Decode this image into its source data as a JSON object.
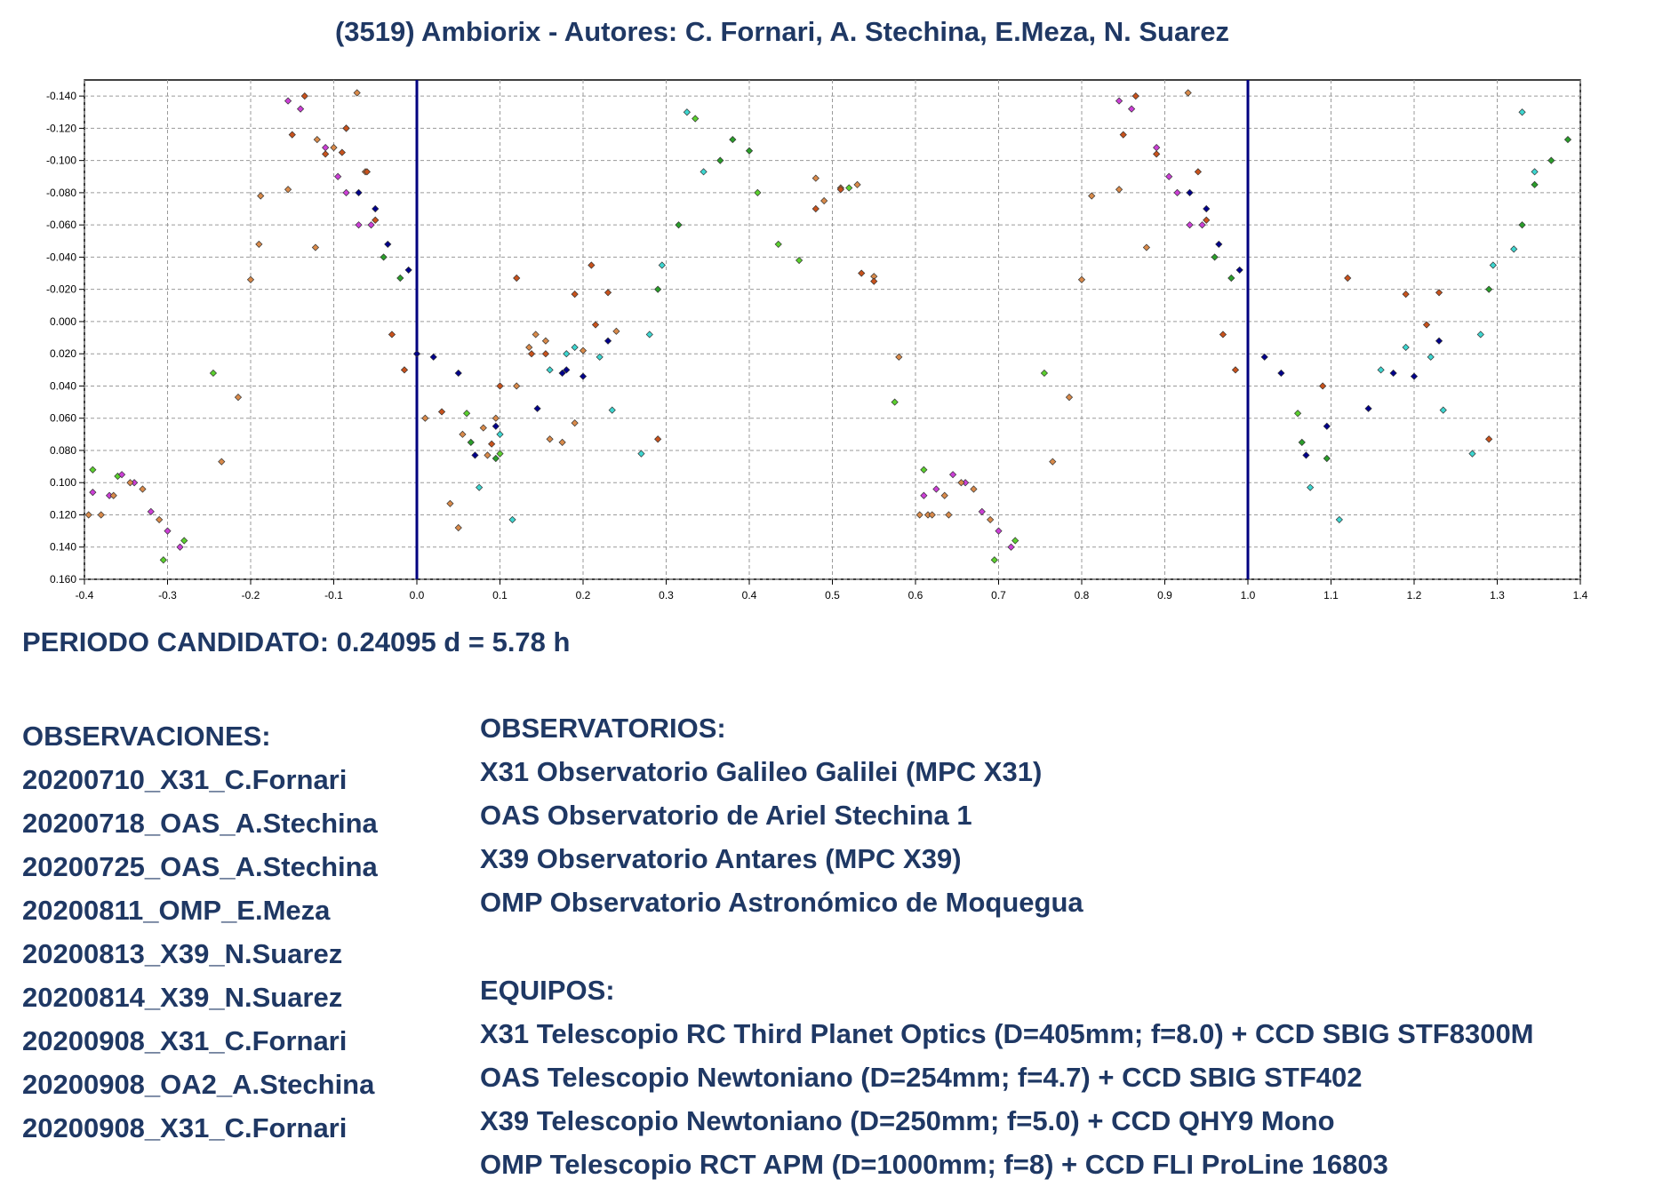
{
  "header": {
    "title": "(3519) Ambiorix - Autores: C. Fornari, A. Stechina, E.Meza, N. Suarez"
  },
  "period": "PERIODO CANDIDATO: 0.24095 d = 5.78 h",
  "observaciones": {
    "heading": "OBSERVACIONES:",
    "items": [
      "20200710_X31_C.Fornari",
      "20200718_OAS_A.Stechina",
      "20200725_OAS_A.Stechina",
      "20200811_OMP_E.Meza",
      "20200813_X39_N.Suarez",
      "20200814_X39_N.Suarez",
      "20200908_X31_C.Fornari",
      "20200908_OA2_A.Stechina",
      "20200908_X31_C.Fornari"
    ]
  },
  "observatorios": {
    "heading": "OBSERVATORIOS:",
    "items": [
      "X31 Observatorio Galileo Galilei (MPC X31)",
      "OAS Observatorio de Ariel Stechina 1",
      "X39 Observatorio Antares (MPC X39)",
      "OMP Observatorio Astronómico de Moquegua"
    ]
  },
  "equipos": {
    "heading": "EQUIPOS:",
    "items": [
      "X31 Telescopio RC Third Planet Optics (D=405mm; f=8.0) + CCD SBIG STF8300M",
      "OAS Telescopio Newtoniano (D=254mm; f=4.7) + CCD SBIG STF402",
      "X39 Telescopio Newtoniano (D=250mm; f=5.0) + CCD QHY9 Mono",
      "OMP Telescopio RCT APM (D=1000mm; f=8) + CCD FLI ProLine 16803"
    ]
  },
  "colors": {
    "text": "#1f3864",
    "phase_markers": "#000080",
    "grid": "#9a9a9a"
  },
  "chart_data": {
    "type": "scatter",
    "title": "(3519) Ambiorix - Autores: C. Fornari, A. Stechina, E.Meza, N. Suarez",
    "xlabel": "",
    "ylabel": "",
    "xlim": [
      -0.4,
      1.4
    ],
    "ylim": [
      0.16,
      -0.15
    ],
    "y_inverted": true,
    "grid": true,
    "legend": "none",
    "vertical_lines": [
      0.0,
      1.0
    ],
    "x_ticks": [
      "-0.4",
      "-0.3",
      "-0.2",
      "-0.1",
      "0.0",
      "0.1",
      "0.2",
      "0.3",
      "0.4",
      "0.5",
      "0.6",
      "0.7",
      "0.8",
      "0.9",
      "1.0",
      "1.1",
      "1.2",
      "1.3",
      "1.4"
    ],
    "y_ticks": [
      "-0.140",
      "-0.120",
      "-0.100",
      "-0.080",
      "-0.060",
      "-0.040",
      "-0.020",
      "0.000",
      "0.020",
      "0.040",
      "0.060",
      "0.080",
      "0.100",
      "0.120",
      "0.140",
      "0.160"
    ],
    "period_shift": 1.0,
    "series": [
      {
        "color": "#d98a4a",
        "points": [
          [
            -0.235,
            0.087
          ],
          [
            -0.215,
            0.047
          ],
          [
            -0.2,
            -0.026
          ],
          [
            -0.19,
            -0.048
          ],
          [
            -0.188,
            -0.078
          ],
          [
            -0.155,
            -0.082
          ],
          [
            -0.12,
            -0.113
          ],
          [
            -0.122,
            -0.046
          ],
          [
            -0.1,
            -0.108
          ],
          [
            -0.085,
            -0.12
          ],
          [
            -0.072,
            -0.142
          ],
          [
            -0.062,
            -0.093
          ],
          [
            0.01,
            0.06
          ],
          [
            0.04,
            0.113
          ],
          [
            0.05,
            0.128
          ],
          [
            0.055,
            0.07
          ],
          [
            0.08,
            0.066
          ],
          [
            0.085,
            0.083
          ],
          [
            0.095,
            0.06
          ],
          [
            0.12,
            0.04
          ],
          [
            0.135,
            0.016
          ],
          [
            0.143,
            0.008
          ],
          [
            0.155,
            0.012
          ],
          [
            0.16,
            0.073
          ],
          [
            0.175,
            0.075
          ],
          [
            0.19,
            0.063
          ],
          [
            0.2,
            0.018
          ],
          [
            0.24,
            0.006
          ],
          [
            0.48,
            -0.089
          ],
          [
            0.49,
            -0.075
          ],
          [
            0.51,
            -0.083
          ],
          [
            0.53,
            -0.085
          ],
          [
            0.55,
            -0.028
          ],
          [
            0.58,
            0.022
          ],
          [
            0.615,
            0.12
          ],
          [
            0.64,
            0.12
          ],
          [
            0.765,
            0.087
          ],
          [
            0.785,
            0.047
          ],
          [
            0.8,
            -0.026
          ],
          [
            0.812,
            -0.078
          ],
          [
            0.845,
            -0.082
          ],
          [
            0.878,
            -0.046
          ],
          [
            0.928,
            -0.142
          ]
        ]
      },
      {
        "color": "#c8521c",
        "points": [
          [
            -0.15,
            -0.116
          ],
          [
            -0.135,
            -0.14
          ],
          [
            -0.11,
            -0.104
          ],
          [
            -0.09,
            -0.105
          ],
          [
            -0.085,
            -0.12
          ],
          [
            -0.06,
            -0.093
          ],
          [
            -0.05,
            -0.063
          ],
          [
            -0.03,
            0.008
          ],
          [
            -0.015,
            0.03
          ],
          [
            0.03,
            0.056
          ],
          [
            0.09,
            0.076
          ],
          [
            0.1,
            0.04
          ],
          [
            0.12,
            -0.027
          ],
          [
            0.138,
            0.02
          ],
          [
            0.155,
            0.02
          ],
          [
            0.19,
            -0.017
          ],
          [
            0.21,
            -0.035
          ],
          [
            0.215,
            0.002
          ],
          [
            0.23,
            -0.018
          ],
          [
            0.29,
            0.073
          ],
          [
            0.48,
            -0.07
          ],
          [
            0.51,
            -0.082
          ],
          [
            0.535,
            -0.03
          ],
          [
            0.55,
            -0.025
          ],
          [
            0.85,
            -0.116
          ],
          [
            0.865,
            -0.14
          ],
          [
            0.89,
            -0.104
          ],
          [
            0.94,
            -0.093
          ],
          [
            0.95,
            -0.063
          ],
          [
            0.97,
            0.008
          ],
          [
            0.985,
            0.03
          ],
          [
            1.09,
            0.04
          ],
          [
            1.12,
            -0.027
          ],
          [
            1.19,
            -0.017
          ],
          [
            1.215,
            0.002
          ],
          [
            1.23,
            -0.018
          ],
          [
            1.29,
            0.073
          ]
        ]
      },
      {
        "color": "#5bd02e",
        "points": [
          [
            -0.39,
            0.092
          ],
          [
            -0.36,
            0.096
          ],
          [
            -0.305,
            0.148
          ],
          [
            -0.28,
            0.136
          ],
          [
            -0.245,
            0.032
          ],
          [
            0.06,
            0.057
          ],
          [
            0.1,
            0.082
          ],
          [
            0.335,
            -0.126
          ],
          [
            0.41,
            -0.08
          ],
          [
            0.435,
            -0.048
          ],
          [
            0.46,
            -0.038
          ],
          [
            0.52,
            -0.083
          ],
          [
            0.575,
            0.05
          ],
          [
            0.61,
            0.092
          ],
          [
            0.695,
            0.148
          ],
          [
            0.72,
            0.136
          ],
          [
            0.755,
            0.032
          ],
          [
            1.06,
            0.057
          ]
        ]
      },
      {
        "color": "#2a9e2a",
        "points": [
          [
            -0.04,
            -0.04
          ],
          [
            -0.02,
            -0.027
          ],
          [
            0.065,
            0.075
          ],
          [
            0.095,
            0.085
          ],
          [
            0.29,
            -0.02
          ],
          [
            0.315,
            -0.06
          ],
          [
            0.365,
            -0.1
          ],
          [
            0.38,
            -0.113
          ],
          [
            0.4,
            -0.106
          ],
          [
            0.96,
            -0.04
          ],
          [
            0.98,
            -0.027
          ],
          [
            1.065,
            0.075
          ],
          [
            1.095,
            0.085
          ],
          [
            1.29,
            -0.02
          ],
          [
            1.33,
            -0.06
          ],
          [
            1.345,
            -0.085
          ],
          [
            1.365,
            -0.1
          ],
          [
            1.385,
            -0.113
          ]
        ]
      },
      {
        "color": "#3dd6d0",
        "points": [
          [
            0.075,
            0.103
          ],
          [
            0.1,
            0.07
          ],
          [
            0.115,
            0.123
          ],
          [
            0.16,
            0.03
          ],
          [
            0.18,
            0.02
          ],
          [
            0.19,
            0.016
          ],
          [
            0.22,
            0.022
          ],
          [
            0.235,
            0.055
          ],
          [
            0.27,
            0.082
          ],
          [
            0.28,
            0.008
          ],
          [
            0.295,
            -0.035
          ],
          [
            0.325,
            -0.13
          ],
          [
            0.345,
            -0.093
          ],
          [
            1.075,
            0.103
          ],
          [
            1.11,
            0.123
          ],
          [
            1.16,
            0.03
          ],
          [
            1.19,
            0.016
          ],
          [
            1.22,
            0.022
          ],
          [
            1.235,
            0.055
          ],
          [
            1.27,
            0.082
          ],
          [
            1.28,
            0.008
          ],
          [
            1.295,
            -0.035
          ],
          [
            1.32,
            -0.045
          ],
          [
            1.33,
            -0.13
          ],
          [
            1.345,
            -0.093
          ]
        ]
      },
      {
        "color": "#00008b",
        "points": [
          [
            -0.07,
            -0.08
          ],
          [
            -0.05,
            -0.07
          ],
          [
            -0.035,
            -0.048
          ],
          [
            -0.01,
            -0.032
          ],
          [
            0.0,
            0.02
          ],
          [
            0.02,
            0.022
          ],
          [
            0.05,
            0.032
          ],
          [
            0.07,
            0.083
          ],
          [
            0.095,
            0.065
          ],
          [
            0.145,
            0.054
          ],
          [
            0.175,
            0.032
          ],
          [
            0.18,
            0.03
          ],
          [
            0.2,
            0.034
          ],
          [
            0.23,
            0.012
          ],
          [
            0.93,
            -0.08
          ],
          [
            0.95,
            -0.07
          ],
          [
            0.965,
            -0.048
          ],
          [
            0.99,
            -0.032
          ],
          [
            1.02,
            0.022
          ],
          [
            1.04,
            0.032
          ],
          [
            1.07,
            0.083
          ],
          [
            1.095,
            0.065
          ],
          [
            1.145,
            0.054
          ],
          [
            1.175,
            0.032
          ],
          [
            1.2,
            0.034
          ],
          [
            1.23,
            0.012
          ]
        ]
      },
      {
        "color": "#cc3fd6",
        "points": [
          [
            -0.39,
            0.106
          ],
          [
            -0.37,
            0.108
          ],
          [
            -0.355,
            0.095
          ],
          [
            -0.34,
            0.1
          ],
          [
            -0.32,
            0.118
          ],
          [
            -0.3,
            0.13
          ],
          [
            -0.285,
            0.14
          ],
          [
            -0.155,
            -0.137
          ],
          [
            -0.14,
            -0.132
          ],
          [
            -0.11,
            -0.108
          ],
          [
            -0.095,
            -0.09
          ],
          [
            -0.085,
            -0.08
          ],
          [
            -0.07,
            -0.06
          ],
          [
            -0.055,
            -0.06
          ],
          [
            0.61,
            0.108
          ],
          [
            0.625,
            0.104
          ],
          [
            0.645,
            0.095
          ],
          [
            0.66,
            0.1
          ],
          [
            0.68,
            0.118
          ],
          [
            0.7,
            0.13
          ],
          [
            0.715,
            0.14
          ],
          [
            0.845,
            -0.137
          ],
          [
            0.86,
            -0.132
          ],
          [
            0.89,
            -0.108
          ],
          [
            0.905,
            -0.09
          ],
          [
            0.915,
            -0.08
          ],
          [
            0.93,
            -0.06
          ],
          [
            0.945,
            -0.06
          ]
        ]
      },
      {
        "color": "#d98a4a",
        "points": [
          [
            -0.395,
            0.12
          ],
          [
            -0.38,
            0.12
          ],
          [
            -0.365,
            0.108
          ],
          [
            -0.345,
            0.1
          ],
          [
            -0.33,
            0.104
          ],
          [
            -0.31,
            0.123
          ],
          [
            0.605,
            0.12
          ],
          [
            0.62,
            0.12
          ],
          [
            0.635,
            0.108
          ],
          [
            0.655,
            0.1
          ],
          [
            0.67,
            0.104
          ],
          [
            0.69,
            0.123
          ]
        ]
      }
    ]
  }
}
